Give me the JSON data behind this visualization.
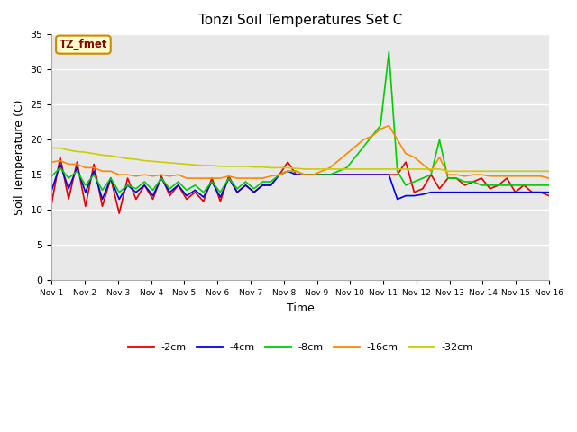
{
  "title": "Tonzi Soil Temperatures Set C",
  "xlabel": "Time",
  "ylabel": "Soil Temperature (C)",
  "ylim": [
    0,
    35
  ],
  "yticks": [
    0,
    5,
    10,
    15,
    20,
    25,
    30,
    35
  ],
  "xlabels": [
    "Nov 1",
    "Nov 2",
    "Nov 3",
    "Nov 4",
    "Nov 5",
    "Nov 6",
    "Nov 7",
    "Nov 8",
    "Nov 9",
    "Nov 10",
    "Nov 11",
    "Nov 12",
    "Nov 13",
    "Nov 14",
    "Nov 15",
    "Nov 16"
  ],
  "annotation_label": "TZ_fmet",
  "annotation_color": "#8b0000",
  "annotation_bg": "#ffffcc",
  "annotation_border": "#cc8800",
  "plot_bg": "#e8e8e8",
  "fig_bg": "#ffffff",
  "grid_color": "#ffffff",
  "series": {
    "-2cm": {
      "color": "#dd0000",
      "data": [
        11.0,
        17.5,
        11.5,
        16.8,
        10.5,
        16.5,
        10.5,
        14.5,
        9.5,
        14.5,
        11.5,
        13.5,
        11.5,
        14.8,
        12.0,
        13.5,
        11.5,
        12.5,
        11.2,
        14.5,
        11.2,
        14.8,
        12.5,
        13.5,
        12.5,
        13.5,
        13.5,
        15.0,
        16.8,
        15.0,
        15.0,
        15.0,
        15.0,
        15.0,
        15.0,
        15.0,
        15.0,
        15.0,
        15.0,
        15.0,
        15.0,
        15.0,
        16.8,
        12.5,
        13.0,
        15.0,
        13.0,
        14.5,
        14.5,
        13.5,
        14.0,
        14.5,
        13.0,
        13.5,
        14.5,
        12.5,
        13.5,
        12.5,
        12.5,
        12.0
      ]
    },
    "-4cm": {
      "color": "#0000dd",
      "data": [
        12.8,
        16.5,
        13.0,
        16.0,
        12.5,
        15.5,
        11.5,
        14.5,
        11.5,
        13.5,
        12.5,
        13.5,
        12.0,
        14.5,
        12.5,
        13.5,
        12.0,
        12.8,
        11.8,
        14.0,
        11.8,
        14.5,
        12.5,
        13.5,
        12.5,
        13.5,
        13.5,
        15.0,
        15.5,
        15.0,
        15.0,
        15.0,
        15.0,
        15.0,
        15.0,
        15.0,
        15.0,
        15.0,
        15.0,
        15.0,
        15.0,
        11.5,
        12.0,
        12.0,
        12.2,
        12.5,
        12.5,
        12.5,
        12.5,
        12.5,
        12.5,
        12.5,
        12.5,
        12.5,
        12.5,
        12.5,
        12.5,
        12.5,
        12.5,
        12.5
      ]
    },
    "-8cm": {
      "color": "#00cc00",
      "data": [
        14.8,
        16.0,
        14.5,
        15.5,
        13.5,
        15.0,
        12.8,
        14.5,
        12.5,
        13.5,
        13.0,
        14.0,
        12.8,
        14.5,
        13.0,
        14.0,
        12.8,
        13.5,
        12.5,
        14.0,
        12.5,
        14.5,
        13.0,
        14.0,
        13.0,
        14.0,
        14.0,
        15.0,
        15.5,
        15.5,
        15.0,
        15.0,
        15.0,
        15.0,
        15.5,
        16.0,
        17.5,
        19.0,
        20.5,
        22.0,
        32.5,
        15.5,
        13.5,
        14.0,
        14.5,
        15.0,
        20.0,
        14.5,
        14.5,
        14.0,
        14.0,
        13.5,
        13.5,
        13.5,
        13.5,
        13.5,
        13.5,
        13.5,
        13.5,
        13.5
      ]
    },
    "-16cm": {
      "color": "#ff8800",
      "data": [
        16.8,
        17.0,
        16.5,
        16.5,
        16.0,
        16.0,
        15.5,
        15.5,
        15.0,
        15.0,
        14.8,
        15.0,
        14.8,
        15.0,
        14.8,
        15.0,
        14.5,
        14.5,
        14.5,
        14.5,
        14.5,
        14.8,
        14.5,
        14.5,
        14.5,
        14.5,
        14.8,
        15.0,
        15.5,
        15.5,
        15.0,
        15.0,
        15.5,
        16.0,
        17.0,
        18.0,
        19.0,
        20.0,
        20.5,
        21.5,
        22.0,
        20.0,
        18.0,
        17.5,
        16.5,
        15.5,
        17.5,
        15.0,
        15.0,
        14.8,
        15.0,
        15.0,
        14.8,
        14.8,
        14.8,
        14.8,
        14.8,
        14.8,
        14.8,
        14.5
      ]
    },
    "-32cm": {
      "color": "#cccc00",
      "data": [
        18.8,
        18.8,
        18.5,
        18.3,
        18.2,
        18.0,
        17.8,
        17.7,
        17.5,
        17.3,
        17.2,
        17.0,
        16.9,
        16.8,
        16.7,
        16.6,
        16.5,
        16.4,
        16.3,
        16.3,
        16.2,
        16.2,
        16.2,
        16.2,
        16.1,
        16.1,
        16.0,
        16.0,
        16.0,
        15.9,
        15.8,
        15.8,
        15.8,
        15.8,
        15.8,
        15.8,
        15.8,
        15.8,
        15.8,
        15.8,
        15.8,
        15.8,
        15.8,
        15.8,
        15.8,
        15.8,
        15.8,
        15.5,
        15.5,
        15.5,
        15.5,
        15.5,
        15.5,
        15.5,
        15.5,
        15.5,
        15.5,
        15.5,
        15.5,
        15.5
      ]
    }
  },
  "n_points": 60
}
